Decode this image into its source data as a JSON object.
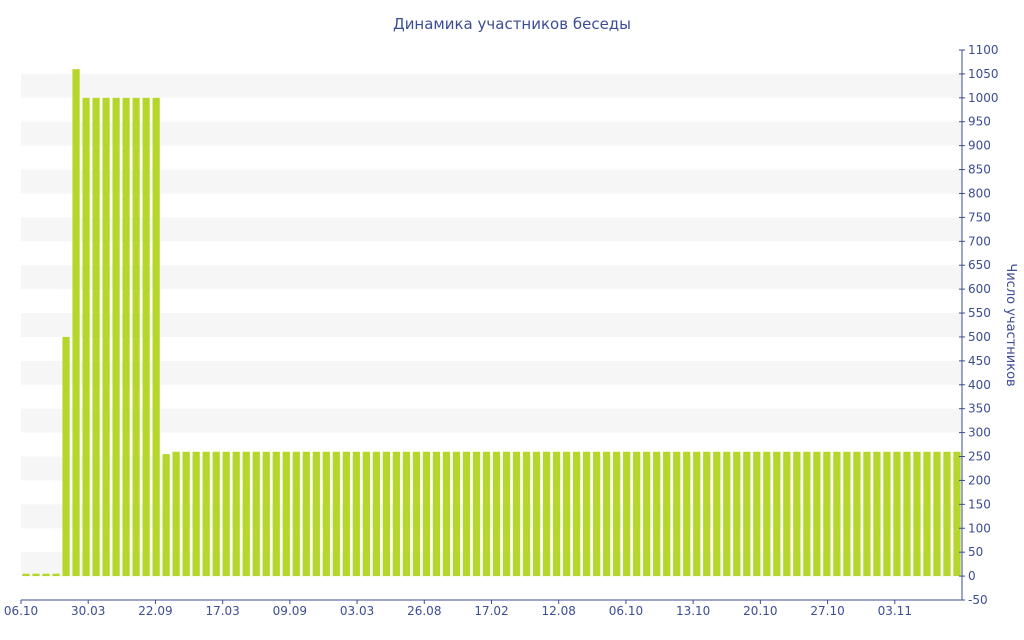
{
  "chart_data": {
    "type": "bar",
    "title": "Динамика участников беседы",
    "xlabel": "",
    "ylabel": "Число участников",
    "y_axis_side": "right",
    "ylim": [
      -50,
      1100
    ],
    "yticks": [
      -50,
      0,
      50,
      100,
      150,
      200,
      250,
      300,
      350,
      400,
      450,
      500,
      550,
      600,
      650,
      700,
      750,
      800,
      850,
      900,
      950,
      1000,
      1050,
      1100
    ],
    "grid": "alternating horizontal bands",
    "legend": "none",
    "bar_color": "#b5d62b",
    "band_color": "#f6f6f6",
    "text_color": "#3b4d94",
    "x_tick_labels": [
      "06.10",
      "30.03",
      "22.09",
      "17.03",
      "09.09",
      "03.03",
      "26.08",
      "17.02",
      "12.08",
      "06.10",
      "13.10",
      "20.10",
      "27.10",
      "03.11"
    ],
    "values": [
      5,
      5,
      5,
      5,
      500,
      1060,
      1000,
      1000,
      1000,
      1000,
      1000,
      1000,
      1000,
      1000,
      255,
      260,
      260,
      260,
      260,
      260,
      260,
      260,
      260,
      260,
      260,
      260,
      260,
      260,
      260,
      260,
      260,
      260,
      260,
      260,
      260,
      260,
      260,
      260,
      260,
      260,
      260,
      260,
      260,
      260,
      260,
      260,
      260,
      260,
      260,
      260,
      260,
      260,
      260,
      260,
      260,
      260,
      260,
      260,
      260,
      260,
      260,
      260,
      260,
      260,
      260,
      260,
      260,
      260,
      260,
      260,
      260,
      260,
      260,
      260,
      260,
      260,
      260,
      260,
      260,
      260,
      260,
      260,
      260,
      260,
      260,
      260,
      260,
      260,
      260,
      260,
      260,
      260,
      260,
      260
    ]
  }
}
